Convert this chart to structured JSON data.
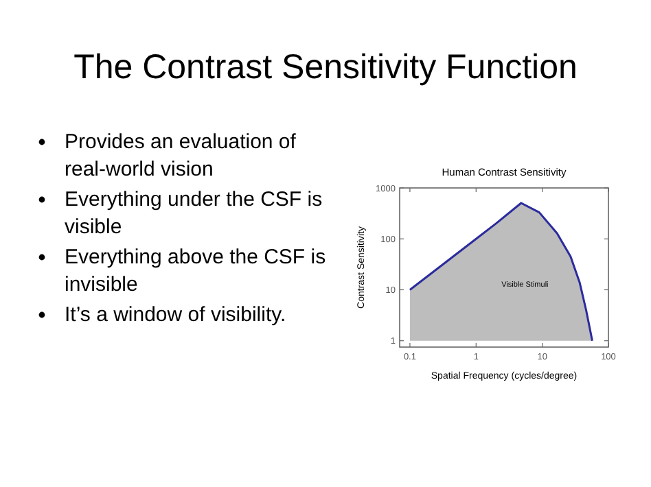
{
  "chart_data": {
    "type": "area",
    "title": "Human Contrast Sensitivity",
    "xlabel": "Spatial Frequency (cycles/degree)",
    "ylabel": "Contrast Sensitivity",
    "log": "xy",
    "xlim": [
      0.07,
      100
    ],
    "ylim": [
      0.75,
      1000
    ],
    "xticks": [
      0.1,
      1,
      10,
      100
    ],
    "yticks": [
      1,
      10,
      100,
      1000
    ],
    "grid": false,
    "series": [
      {
        "color": "#2b2b9e",
        "x": [
          0.1,
          0.1,
          1,
          2,
          4.8,
          9,
          16.7,
          26.8,
          36.7,
          46,
          57
        ],
        "values": [
          1,
          10,
          100,
          200,
          505,
          331,
          129,
          45,
          14,
          4,
          1
        ]
      }
    ],
    "annotations": [
      "The Contrast Sensitivity Function",
      "Provides an evaluation of real-world vision",
      "Everything under the CSF is visible",
      "Everything above the CSF is invisible",
      "It’s a window of visibility.",
      "Visible Stimuli"
    ]
  }
}
